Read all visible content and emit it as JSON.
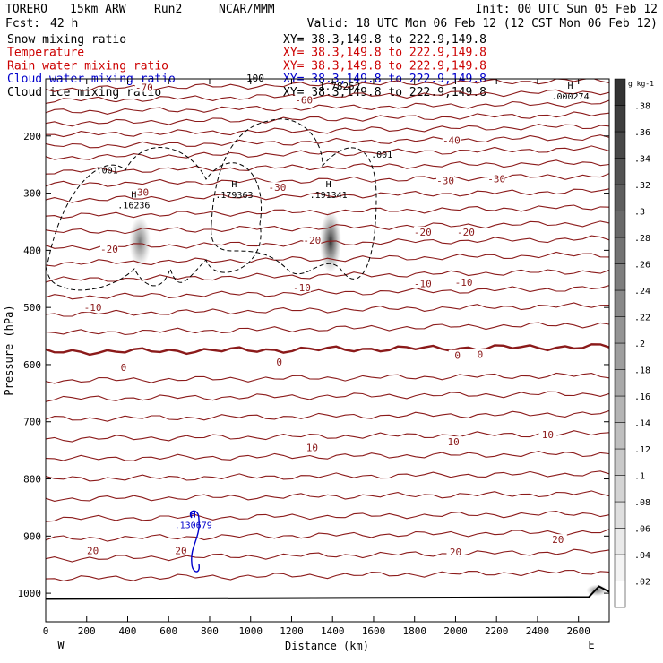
{
  "header": {
    "model": "TORERO",
    "resolution": "15km ARW",
    "run": "Run2",
    "org": "NCAR/MMM",
    "init": "Init: 00 UTC Sun 05 Feb 12",
    "fcst_label": "Fcst:",
    "fcst_value": "42 h",
    "valid": "Valid: 18 UTC Mon 06 Feb 12 (12 CST Mon 06 Feb 12)"
  },
  "fields": [
    {
      "name": "Snow mixing ratio",
      "section": "XY=  38.3,149.8 to 222.9,149.8",
      "color": "#000000"
    },
    {
      "name": "Temperature",
      "section": "XY=  38.3,149.8 to 222.9,149.8",
      "color": "#cc0000"
    },
    {
      "name": "Rain water mixing ratio",
      "section": "XY=  38.3,149.8 to 222.9,149.8",
      "color": "#cc0000"
    },
    {
      "name": "Cloud water mixing ratio",
      "section": "XY=  38.3,149.8 to 222.9,149.8",
      "color": "#0000cc"
    },
    {
      "name": "Cloud ice mixing ratio",
      "section": "XY=  38.3,149.8 to 222.9,149.8",
      "color": "#000000"
    }
  ],
  "overlap_tops": {
    "left": "100",
    "right": "1.78252"
  },
  "chart_data": {
    "type": "cross-section",
    "xlabel": "Distance (km)",
    "ylabel": "Pressure (hPa)",
    "xlim": [
      0,
      2750
    ],
    "ylim": [
      1050,
      100
    ],
    "x_ticks": [
      0,
      200,
      400,
      600,
      800,
      1000,
      1200,
      1400,
      1600,
      1800,
      2000,
      2200,
      2400,
      2600
    ],
    "x_tick_labels": [
      "0",
      "200",
      "400",
      "600",
      "800",
      "1000",
      "1200",
      "1400",
      "1600",
      "1800",
      "2000",
      "2200",
      "2400",
      "2600"
    ],
    "y_ticks": [
      200,
      300,
      400,
      500,
      600,
      700,
      800,
      900,
      1000
    ],
    "y_tick_labels": [
      "200",
      "300",
      "400",
      "500",
      "600",
      "700",
      "800",
      "900",
      "1000"
    ],
    "endpoints": {
      "left": "W",
      "right": "E"
    },
    "temperature_color": "#8b1a1a",
    "isotherm_pressures": [
      118,
      138,
      158,
      178,
      198,
      218,
      238,
      262,
      285,
      312,
      340,
      368,
      395,
      423,
      452,
      482,
      512,
      545,
      578,
      628,
      660,
      695,
      730,
      765,
      800,
      835,
      870,
      905,
      940,
      975
    ],
    "isotherm_labels": [
      {
        "text": "-70",
        "x": 480,
        "p": 115
      },
      {
        "text": "-60",
        "x": 1260,
        "p": 137
      },
      {
        "text": "-40",
        "x": 1980,
        "p": 207
      },
      {
        "text": "-30",
        "x": 460,
        "p": 298
      },
      {
        "text": "-30",
        "x": 1130,
        "p": 290
      },
      {
        "text": "-30",
        "x": 1950,
        "p": 278
      },
      {
        "text": "-30",
        "x": 2200,
        "p": 275
      },
      {
        "text": "-20",
        "x": 310,
        "p": 398
      },
      {
        "text": "-20",
        "x": 1300,
        "p": 382
      },
      {
        "text": "-20",
        "x": 1840,
        "p": 368
      },
      {
        "text": "-20",
        "x": 2050,
        "p": 368
      },
      {
        "text": "-10",
        "x": 230,
        "p": 500
      },
      {
        "text": "-10",
        "x": 1250,
        "p": 465
      },
      {
        "text": "-10",
        "x": 1840,
        "p": 458
      },
      {
        "text": "-10",
        "x": 2040,
        "p": 456
      },
      {
        "text": "0",
        "x": 380,
        "p": 605
      },
      {
        "text": "0",
        "x": 1140,
        "p": 595
      },
      {
        "text": "0",
        "x": 2010,
        "p": 584
      },
      {
        "text": "0",
        "x": 2120,
        "p": 582
      },
      {
        "text": "10",
        "x": 1300,
        "p": 745
      },
      {
        "text": "10",
        "x": 1990,
        "p": 735
      },
      {
        "text": "10",
        "x": 2450,
        "p": 722
      },
      {
        "text": "20",
        "x": 230,
        "p": 925
      },
      {
        "text": "20",
        "x": 660,
        "p": 925
      },
      {
        "text": "20",
        "x": 2000,
        "p": 928
      },
      {
        "text": "20",
        "x": 2500,
        "p": 906
      }
    ],
    "surface_pressure": 1010,
    "cloud_ice_contours": [
      {
        "label": ".001",
        "x": 300,
        "p": 265
      },
      {
        "label": ".001",
        "x": 1640,
        "p": 238
      }
    ],
    "maxima": [
      {
        "marker": "H",
        "value": ".16236",
        "x": 430,
        "p": 320,
        "series": "cloud ice"
      },
      {
        "marker": "H",
        "value": ".179363",
        "x": 920,
        "p": 302,
        "series": "cloud ice"
      },
      {
        "marker": "H",
        "value": ".191341",
        "x": 1380,
        "p": 302,
        "series": "cloud ice"
      },
      {
        "marker": "H",
        "value": ".000274",
        "x": 2560,
        "p": 130,
        "series": "snow"
      },
      {
        "marker": "H",
        "value": ".130679",
        "x": 720,
        "p": 880,
        "series": "cloud water"
      }
    ],
    "shading_cores": [
      {
        "x": 460,
        "p_top": 340,
        "p_bottom": 430,
        "intensity": 0.6
      },
      {
        "x": 1390,
        "p_top": 330,
        "p_bottom": 440,
        "intensity": 0.9
      },
      {
        "x": 2690,
        "p_top": 985,
        "p_bottom": 1005,
        "intensity": 0.6
      }
    ],
    "colorbar": {
      "unit": "g kg-1",
      "ticks": [
        ".02",
        ".04",
        ".06",
        ".08",
        ".1",
        ".12",
        ".14",
        ".16",
        ".18",
        ".2",
        ".22",
        ".24",
        ".26",
        ".28",
        ".3",
        ".32",
        ".34",
        ".36",
        ".38"
      ],
      "values": [
        0.02,
        0.04,
        0.06,
        0.08,
        0.1,
        0.12,
        0.14,
        0.16,
        0.18,
        0.2,
        0.22,
        0.24,
        0.26,
        0.28,
        0.3,
        0.32,
        0.34,
        0.36,
        0.38
      ],
      "max": 0.4
    }
  }
}
